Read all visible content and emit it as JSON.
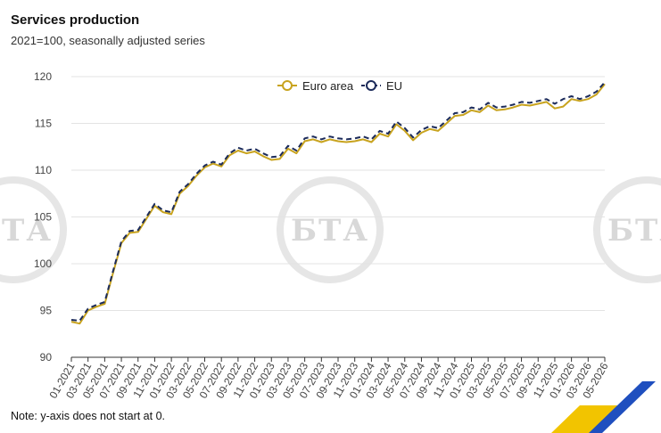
{
  "chart_data": {
    "type": "line",
    "title": "Services production",
    "subtitle": "2021=100, seasonally adjusted series",
    "note": "Note: y-axis does not start at 0.",
    "ylim": [
      90,
      120
    ],
    "yticks": [
      90,
      95,
      100,
      105,
      110,
      115,
      120
    ],
    "grid": true,
    "legend_position": "top-center",
    "x_tick_labels": [
      "01-2021",
      "03-2021",
      "05-2021",
      "07-2021",
      "09-2021",
      "11-2021",
      "01-2022",
      "03-2022",
      "05-2022",
      "07-2022",
      "09-2022",
      "11-2022",
      "01-2023",
      "03-2023",
      "05-2023",
      "07-2023",
      "09-2023",
      "11-2023",
      "01-2024",
      "03-2024",
      "05-2024",
      "07-2024",
      "09-2024",
      "11-2024",
      "01-2025",
      "03-2025",
      "05-2025",
      "07-2025",
      "09-2025",
      "11-2025",
      "01-2026",
      "03-2026",
      "05-2026"
    ],
    "series": [
      {
        "name": "Euro area",
        "color": "#c8a31e",
        "values": [
          93.8,
          93.6,
          95.0,
          95.4,
          95.7,
          99.0,
          102.2,
          103.3,
          103.4,
          104.8,
          106.2,
          105.5,
          105.3,
          107.5,
          108.3,
          109.4,
          110.3,
          110.7,
          110.4,
          111.6,
          112.1,
          111.8,
          112.0,
          111.5,
          111.1,
          111.2,
          112.3,
          111.8,
          113.1,
          113.3,
          113.0,
          113.3,
          113.1,
          113.0,
          113.1,
          113.3,
          113.0,
          113.9,
          113.6,
          114.9,
          114.2,
          113.2,
          114.0,
          114.4,
          114.2,
          115.0,
          115.8,
          115.9,
          116.4,
          116.2,
          116.9,
          116.4,
          116.5,
          116.7,
          117.0,
          116.9,
          117.1,
          117.3,
          116.6,
          116.8,
          117.6,
          117.4,
          117.6,
          118.1,
          119.2
        ]
      },
      {
        "name": "EU",
        "color": "#1c2b5a",
        "values": [
          94.0,
          93.9,
          95.2,
          95.6,
          95.9,
          99.2,
          102.4,
          103.5,
          103.6,
          105.0,
          106.4,
          105.7,
          105.5,
          107.7,
          108.5,
          109.6,
          110.5,
          110.9,
          110.6,
          111.8,
          112.4,
          112.1,
          112.3,
          111.8,
          111.4,
          111.5,
          112.6,
          112.1,
          113.4,
          113.6,
          113.3,
          113.6,
          113.4,
          113.3,
          113.4,
          113.6,
          113.3,
          114.2,
          113.9,
          115.2,
          114.5,
          113.5,
          114.3,
          114.7,
          114.5,
          115.3,
          116.1,
          116.2,
          116.7,
          116.5,
          117.2,
          116.7,
          116.8,
          117.0,
          117.3,
          117.2,
          117.4,
          117.6,
          117.1,
          117.6,
          117.9,
          117.6,
          117.9,
          118.4,
          119.4
        ]
      }
    ]
  },
  "watermark": "БТА"
}
